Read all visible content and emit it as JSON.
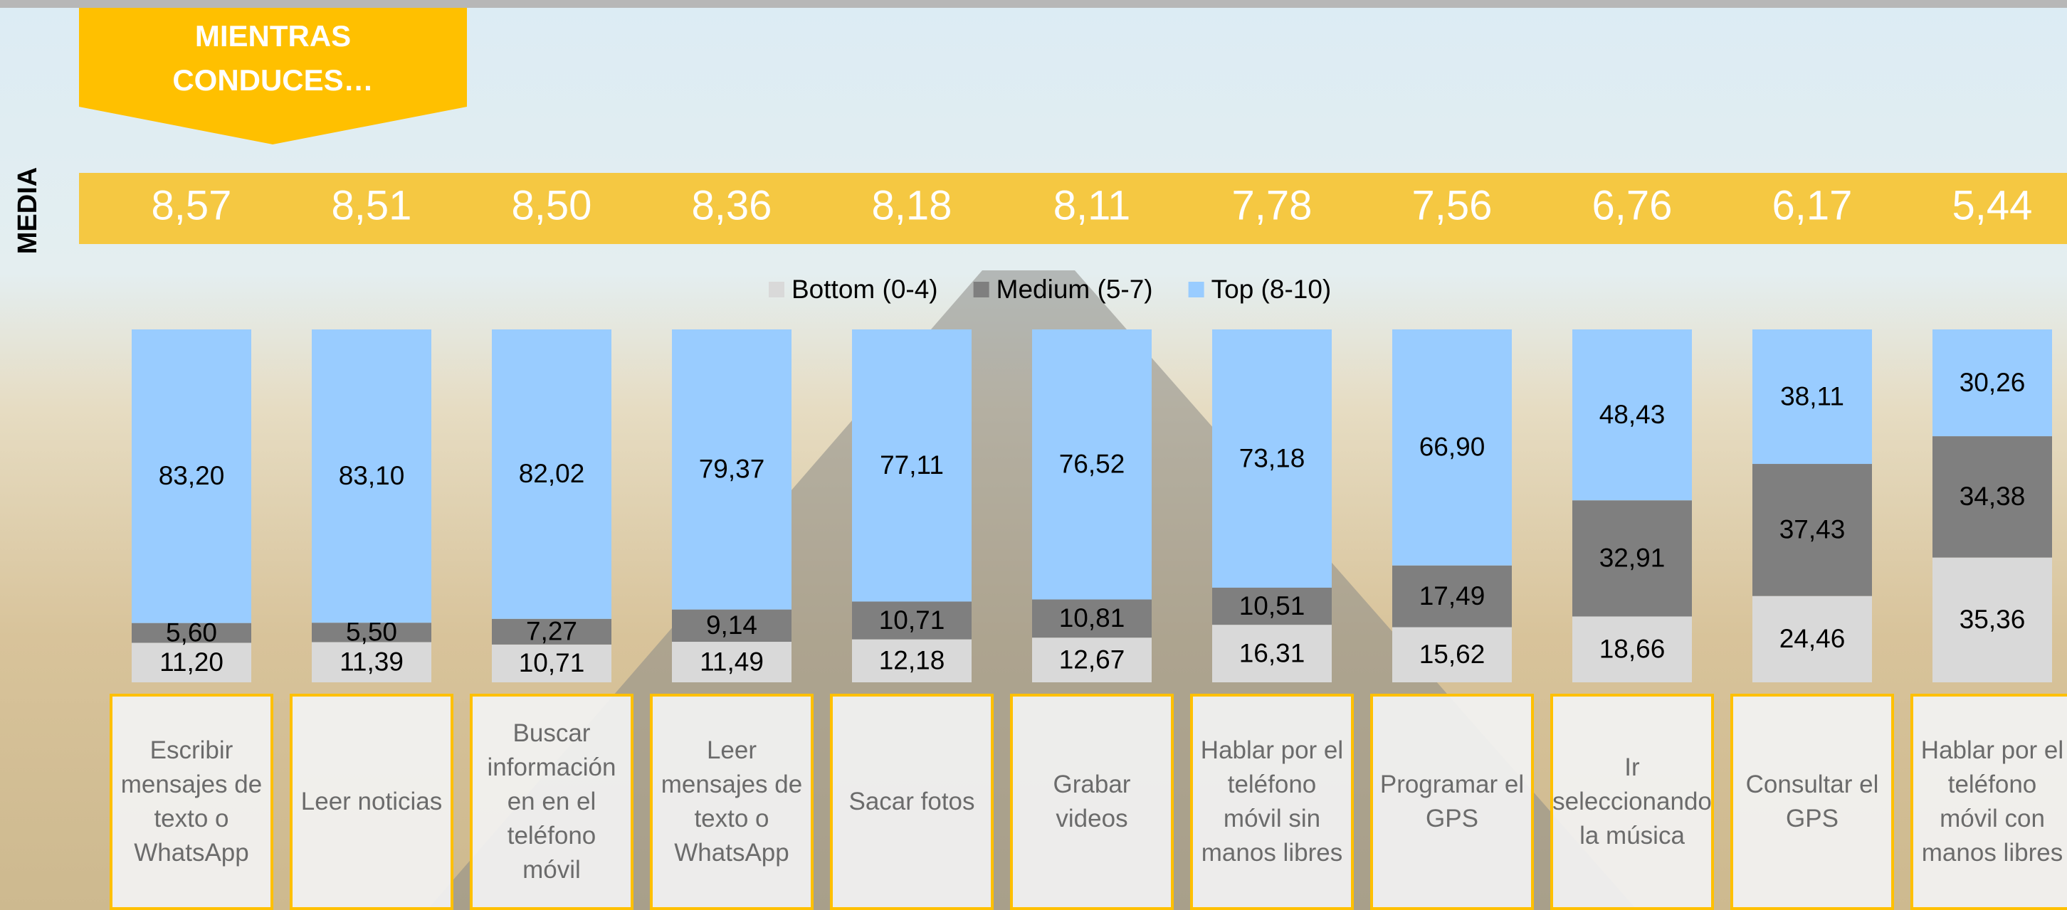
{
  "banner": "MIENTRAS CONDUCES…",
  "chart_data": {
    "type": "bar",
    "stacked": true,
    "categories": [
      "Escribir mensajes de texto o WhatsApp",
      "Leer noticias",
      "Buscar información en en el teléfono móvil",
      "Leer mensajes de texto o WhatsApp",
      "Sacar fotos",
      "Grabar videos",
      "Hablar por el teléfono móvil sin manos libres",
      "Programar el GPS",
      "Ir seleccionando la música",
      "Consultar el GPS",
      "Hablar por el teléfono móvil con manos libres"
    ],
    "ylim": [
      0,
      100
    ],
    "series": [
      {
        "name": "Bottom (0-4)",
        "color": "#d9d9d9",
        "values": [
          11.2,
          11.39,
          10.71,
          11.49,
          12.18,
          12.67,
          16.31,
          15.62,
          18.66,
          24.46,
          35.36
        ],
        "value_labels": [
          "11,20",
          "11,39",
          "10,71",
          "11,49",
          "12,18",
          "12,67",
          "16,31",
          "15,62",
          "18,66",
          "24,46",
          "35,36"
        ]
      },
      {
        "name": "Medium (5-7)",
        "color": "#7f7f7f",
        "values": [
          5.6,
          5.5,
          7.27,
          9.14,
          10.71,
          10.81,
          10.51,
          17.49,
          32.91,
          37.43,
          34.38
        ],
        "value_labels": [
          "5,60",
          "5,50",
          "7,27",
          "9,14",
          "10,71",
          "10,81",
          "10,51",
          "17,49",
          "32,91",
          "37,43",
          "34,38"
        ]
      },
      {
        "name": "Top (8-10)",
        "color": "#99ccff",
        "values": [
          83.2,
          83.1,
          82.02,
          79.37,
          77.11,
          76.52,
          73.18,
          66.9,
          48.43,
          38.11,
          30.26
        ],
        "value_labels": [
          "83,20",
          "83,10",
          "82,02",
          "79,37",
          "77,11",
          "76,52",
          "73,18",
          "66,90",
          "48,43",
          "38,11",
          "30,26"
        ]
      }
    ],
    "mean": {
      "label": "MEDIA",
      "values": [
        8.57,
        8.51,
        8.5,
        8.36,
        8.18,
        8.11,
        7.78,
        7.56,
        6.76,
        6.17,
        5.44
      ],
      "value_labels": [
        "8,57",
        "8,51",
        "8,50",
        "8,36",
        "8,18",
        "8,11",
        "7,78",
        "7,56",
        "6,76",
        "6,17",
        "5,44"
      ]
    }
  }
}
